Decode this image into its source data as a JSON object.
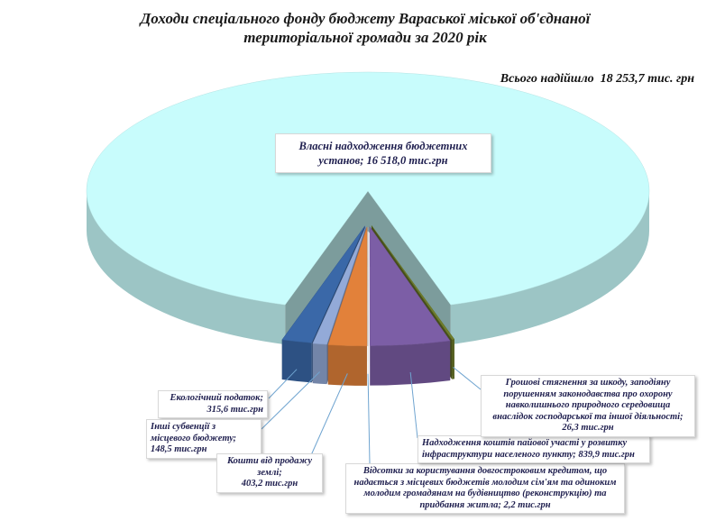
{
  "chart_data": {
    "type": "pie",
    "title": "Доходи спеціального фонду бюджету Вараської міської об'єднаної територіальної громади за 2020 рік",
    "annotation": "Всього надійшло  18 253,7 тис. грн",
    "categories": [
      "Власні надходження бюджетних установ;",
      "Екологічний податок;",
      "Інші субвенції з місцевого бюджету;",
      "Кошти від продажу землі;",
      "Відсотки за користування довгостроковим кредитом, що надається з місцевих бюджетів молодим сім'ям та одиноким молодим громадянам на будівництво (реконструкцію) та придбання житла;",
      "Надходження коштів пайової участі у розвитку інфраструктури населеного пункту;",
      "Грошові стягнення за шкоду, заподіяну порушенням законодавства про охорону навколишнього природного середовища внаслідок господарської та іншої діяльності;"
    ],
    "values": [
      16518.0,
      315.6,
      148.5,
      403.2,
      2.2,
      839.9,
      26.3
    ],
    "value_labels": [
      "16 518,0 тис.грн",
      "315,6 тис.грн",
      "148,5 тис.грн",
      "403,2 тис.грн",
      "2,2 тис.грн",
      "839,9 тис.грн",
      "26,3 тис.грн"
    ],
    "colors": [
      "#c8fcfc",
      "#3a68a8",
      "#93aad8",
      "#e2813a",
      "#b9b9b9",
      "#7c5ea6",
      "#6f7d2c"
    ]
  }
}
